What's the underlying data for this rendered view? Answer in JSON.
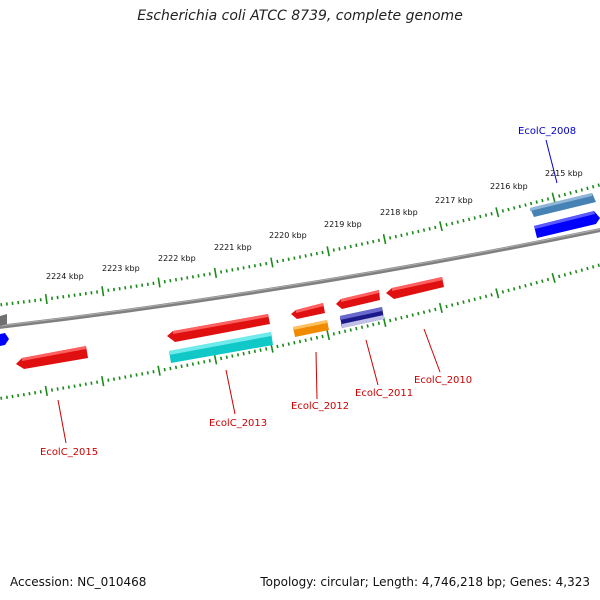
{
  "title": "Escherichia coli ATCC 8739, complete genome",
  "footer": {
    "accession": "Accession: NC_010468",
    "summary": "Topology: circular; Length: 4,746,218 bp; Genes: 4,323"
  },
  "colors": {
    "backbone": "#808080",
    "tick": "#1a8a1a",
    "gene_red": "#e01010",
    "gene_cyan": "#10c8c8",
    "gene_orange": "#f08a00",
    "gene_navy": "#1a1a8a",
    "gene_steel": "#4682b4",
    "gene_blue": "#0000ff",
    "label_red": "#cc0000",
    "label_blue": "#0000cc"
  },
  "scale_labels": [
    "2215 kbp",
    "2216 kbp",
    "2217 kbp",
    "2218 kbp",
    "2219 kbp",
    "2220 kbp",
    "2221 kbp",
    "2222 kbp",
    "2223 kbp",
    "2224 kbp"
  ],
  "gene_labels": [
    "EcolC_2008",
    "EcolC_2010",
    "EcolC_2011",
    "EcolC_2012",
    "EcolC_2013",
    "EcolC_2015"
  ]
}
